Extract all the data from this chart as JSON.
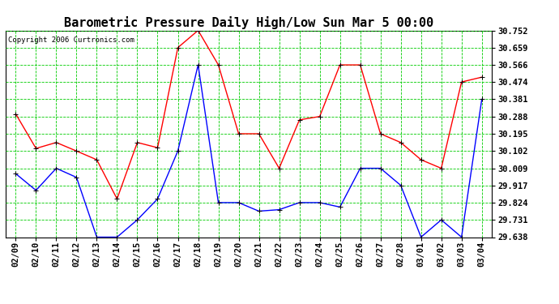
{
  "title": "Barometric Pressure Daily High/Low Sun Mar 5 00:00",
  "copyright": "Copyright 2006 Curtronics.com",
  "x_labels": [
    "02/09",
    "02/10",
    "02/11",
    "02/12",
    "02/13",
    "02/14",
    "02/15",
    "02/16",
    "02/17",
    "02/18",
    "02/19",
    "02/20",
    "02/21",
    "02/22",
    "02/23",
    "02/24",
    "02/25",
    "02/26",
    "02/27",
    "02/28",
    "03/01",
    "03/02",
    "03/03",
    "03/04"
  ],
  "high_values": [
    30.302,
    30.116,
    30.148,
    30.102,
    30.055,
    29.844,
    30.148,
    30.12,
    30.659,
    30.752,
    30.566,
    30.195,
    30.195,
    30.009,
    30.27,
    30.288,
    30.566,
    30.566,
    30.195,
    30.148,
    30.055,
    30.009,
    30.474,
    30.5
  ],
  "low_values": [
    29.98,
    29.89,
    30.009,
    29.96,
    29.638,
    29.638,
    29.731,
    29.844,
    30.102,
    30.566,
    29.824,
    29.824,
    29.778,
    29.786,
    29.824,
    29.824,
    29.8,
    30.009,
    30.009,
    29.917,
    29.638,
    29.731,
    29.638,
    30.381
  ],
  "y_ticks": [
    29.638,
    29.731,
    29.824,
    29.917,
    30.009,
    30.102,
    30.195,
    30.288,
    30.381,
    30.474,
    30.566,
    30.659,
    30.752
  ],
  "ylim_min": 29.638,
  "ylim_max": 30.752,
  "bg_color": "#ffffff",
  "plot_bg_color": "#ffffff",
  "grid_color": "#00cc00",
  "high_color": "#ff0000",
  "low_color": "#0000ff",
  "marker": "+",
  "marker_size": 5,
  "title_fontsize": 11,
  "tick_fontsize": 7.5,
  "copyright_fontsize": 6.5,
  "linewidth": 1.0
}
